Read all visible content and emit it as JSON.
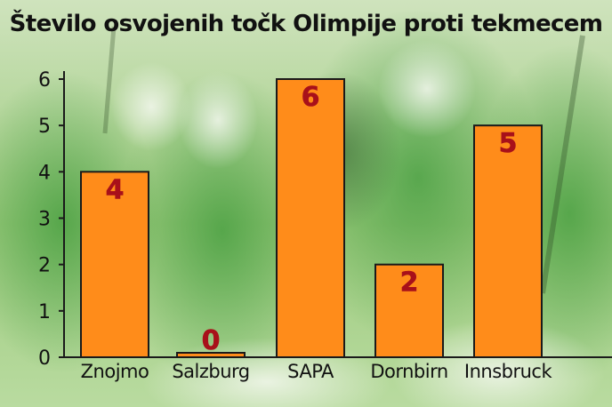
{
  "chart_data": {
    "type": "bar",
    "title": "Število osvojenih točk Olimpije proti tekmecem",
    "categories": [
      "Znojmo",
      "Salzburg",
      "SAPA",
      "Dornbirn",
      "Innsbruck"
    ],
    "values": [
      4,
      0,
      6,
      2,
      5
    ],
    "yticks": [
      "0",
      "1",
      "2",
      "3",
      "4",
      "5",
      "6"
    ],
    "ylim": [
      0,
      6
    ],
    "xlabel": "",
    "ylabel": "",
    "grid": false,
    "legend": "none"
  },
  "colors": {
    "bar_fill": "#ff8c1a",
    "bar_stroke": "#1a1a1a",
    "value_label": "#a8101a",
    "axis": "#1a1a1a",
    "background": "#a9d08a"
  },
  "background_image": "hockey-players-celebration"
}
